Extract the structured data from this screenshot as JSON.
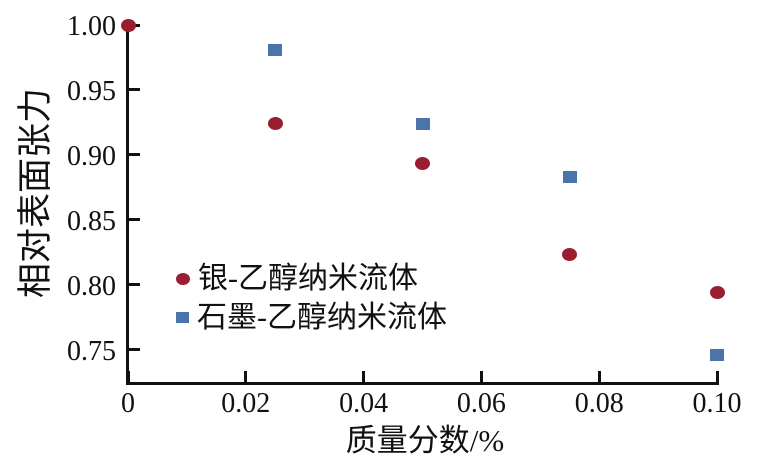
{
  "colors": {
    "axis": "#111111",
    "background": "#ffffff",
    "silver_series": "#9a1e2f",
    "graphite_series": "#4b74a9"
  },
  "chart_data": {
    "type": "scatter",
    "title": "",
    "xlabel": "质量分数/%",
    "ylabel": "相对表面张力",
    "xlim": [
      0,
      0.1
    ],
    "ylim": [
      0.725,
      1.0
    ],
    "x_ticks": [
      0,
      0.02,
      0.04,
      0.06,
      0.08,
      0.1
    ],
    "x_tick_labels": [
      "0",
      "0.02",
      "0.04",
      "0.06",
      "0.08",
      "0.10"
    ],
    "y_ticks": [
      1.0,
      0.95,
      0.9,
      0.85,
      0.8,
      0.75
    ],
    "y_tick_labels": [
      "1.00",
      "0.95",
      "0.90",
      "0.85",
      "0.80",
      "0.75"
    ],
    "grid": false,
    "legend_position": "inside-center-left",
    "series": [
      {
        "name": "银-乙醇纳米流体",
        "marker": "circle",
        "color": "#9a1e2f",
        "points": [
          [
            0,
            1.0
          ],
          [
            0.025,
            0.924
          ],
          [
            0.05,
            0.893
          ],
          [
            0.075,
            0.823
          ],
          [
            0.1,
            0.794
          ]
        ]
      },
      {
        "name": "石墨-乙醇纳米流体",
        "marker": "square",
        "color": "#4b74a9",
        "points": [
          [
            0.025,
            0.981
          ],
          [
            0.05,
            0.924
          ],
          [
            0.075,
            0.883
          ],
          [
            0.1,
            0.746
          ]
        ]
      }
    ]
  }
}
